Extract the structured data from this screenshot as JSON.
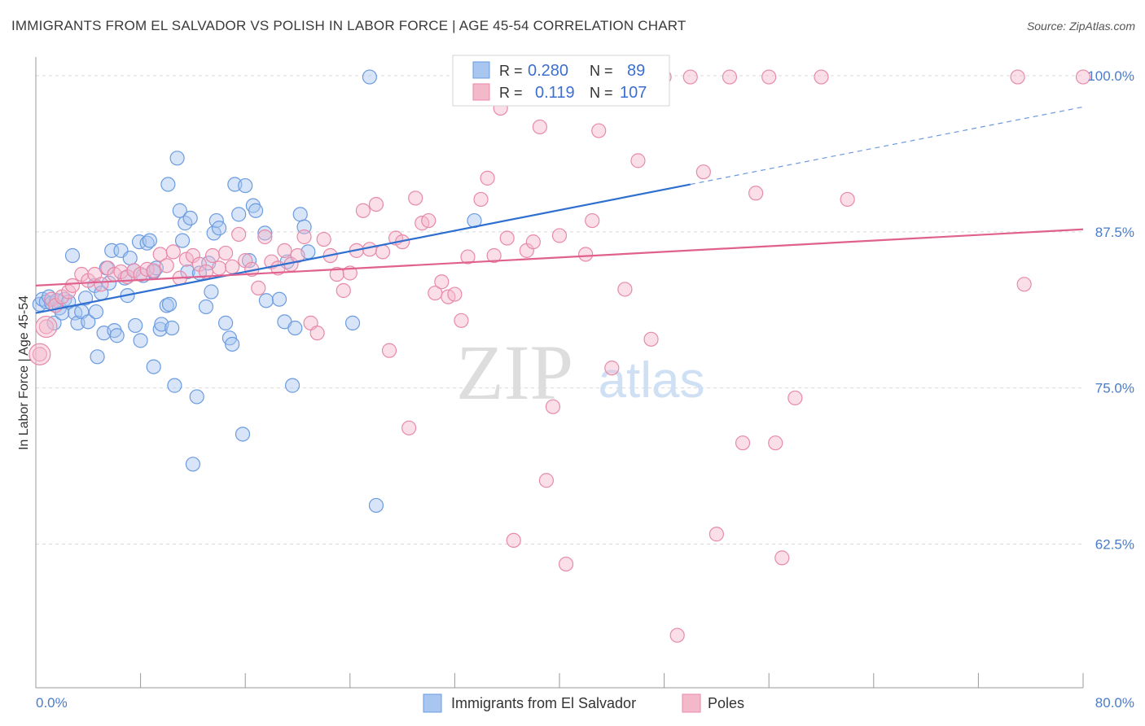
{
  "chart_data": {
    "type": "scatter",
    "title": "IMMIGRANTS FROM EL SALVADOR VS POLISH IN LABOR FORCE | AGE 45-54 CORRELATION CHART",
    "source": "Source: ZipAtlas.com",
    "xlabel": "",
    "ylabel": "In Labor Force | Age 45-54",
    "xlim": [
      0,
      80
    ],
    "ylim": [
      51,
      101.5
    ],
    "x_tick_labels": {
      "min": "0.0%",
      "max": "80.0%"
    },
    "y_ticks": [
      {
        "value": 100,
        "label": "100.0%"
      },
      {
        "value": 87.5,
        "label": "87.5%"
      },
      {
        "value": 75,
        "label": "75.0%"
      },
      {
        "value": 62.5,
        "label": "62.5%"
      }
    ],
    "grid": true,
    "watermark": {
      "zip": "ZIP",
      "atlas": "atlas"
    },
    "legend": {
      "r_label": "R =",
      "n_label": "N =",
      "entries": [
        {
          "r": "0.280",
          "n": "89"
        },
        {
          "r": "0.119",
          "n": "107"
        }
      ]
    },
    "series": [
      {
        "name": "Immigrants from El Salvador",
        "color": "#6b9be0",
        "fill": "#a9c6f0",
        "trend": {
          "x": [
            0,
            50
          ],
          "y": [
            81.0,
            91.3
          ],
          "dashed_to": {
            "x": 80,
            "y": 97.5
          },
          "color": "#2f6fd0"
        },
        "points": [
          [
            0.3,
            81.7
          ],
          [
            0.5,
            82.1
          ],
          [
            0.8,
            81.9
          ],
          [
            1.0,
            82.3
          ],
          [
            1.2,
            81.8
          ],
          [
            1.4,
            80.2
          ],
          [
            1.6,
            82.0
          ],
          [
            1.8,
            81.4
          ],
          [
            2.0,
            81.0
          ],
          [
            2.2,
            82.1
          ],
          [
            2.5,
            81.9
          ],
          [
            2.8,
            85.6
          ],
          [
            3.0,
            81.0
          ],
          [
            3.2,
            80.2
          ],
          [
            3.5,
            81.1
          ],
          [
            3.8,
            82.2
          ],
          [
            4.0,
            80.3
          ],
          [
            4.5,
            83.2
          ],
          [
            4.6,
            81.1
          ],
          [
            4.7,
            77.5
          ],
          [
            5.0,
            82.6
          ],
          [
            5.2,
            79.4
          ],
          [
            5.4,
            84.6
          ],
          [
            5.6,
            83.4
          ],
          [
            5.8,
            86.0
          ],
          [
            6.0,
            79.6
          ],
          [
            6.2,
            79.2
          ],
          [
            6.5,
            86.0
          ],
          [
            6.8,
            83.8
          ],
          [
            7.0,
            82.4
          ],
          [
            7.2,
            85.4
          ],
          [
            7.5,
            84.4
          ],
          [
            7.6,
            80.0
          ],
          [
            7.9,
            86.7
          ],
          [
            8.0,
            78.8
          ],
          [
            8.2,
            84.0
          ],
          [
            8.5,
            86.6
          ],
          [
            8.7,
            86.8
          ],
          [
            9.0,
            84.3
          ],
          [
            9.0,
            76.7
          ],
          [
            9.2,
            84.6
          ],
          [
            9.5,
            79.7
          ],
          [
            9.6,
            80.1
          ],
          [
            10.0,
            81.6
          ],
          [
            10.1,
            91.3
          ],
          [
            10.2,
            81.7
          ],
          [
            10.4,
            79.8
          ],
          [
            10.6,
            75.2
          ],
          [
            10.8,
            93.4
          ],
          [
            11.0,
            89.2
          ],
          [
            11.2,
            86.8
          ],
          [
            11.4,
            88.2
          ],
          [
            11.6,
            84.3
          ],
          [
            11.8,
            88.6
          ],
          [
            12.0,
            68.9
          ],
          [
            12.3,
            74.3
          ],
          [
            12.5,
            84.2
          ],
          [
            13.0,
            81.5
          ],
          [
            13.2,
            85.0
          ],
          [
            13.4,
            82.7
          ],
          [
            13.6,
            87.4
          ],
          [
            13.8,
            88.4
          ],
          [
            14.0,
            87.8
          ],
          [
            14.5,
            80.2
          ],
          [
            14.8,
            79.0
          ],
          [
            15.0,
            78.5
          ],
          [
            15.2,
            91.3
          ],
          [
            15.5,
            88.9
          ],
          [
            15.8,
            71.3
          ],
          [
            16.0,
            91.2
          ],
          [
            16.3,
            85.2
          ],
          [
            16.6,
            89.6
          ],
          [
            16.8,
            89.2
          ],
          [
            17.5,
            87.4
          ],
          [
            17.6,
            82.0
          ],
          [
            18.6,
            82.1
          ],
          [
            19.0,
            80.3
          ],
          [
            19.2,
            85.1
          ],
          [
            19.6,
            75.2
          ],
          [
            19.8,
            79.8
          ],
          [
            20.2,
            88.9
          ],
          [
            20.5,
            87.9
          ],
          [
            20.8,
            85.9
          ],
          [
            24.2,
            80.2
          ],
          [
            25.5,
            99.9
          ],
          [
            26.0,
            65.6
          ],
          [
            33.5,
            88.4
          ]
        ]
      },
      {
        "name": "Poles",
        "color": "#e78aa8",
        "fill": "#f4b8cb",
        "trend": {
          "x": [
            0,
            80
          ],
          "y": [
            83.2,
            87.7
          ],
          "color": "#e0608e"
        },
        "points": [
          [
            0.3,
            77.7
          ],
          [
            0.8,
            79.9
          ],
          [
            1.2,
            82.1
          ],
          [
            1.5,
            81.6
          ],
          [
            2.0,
            82.3
          ],
          [
            2.5,
            82.7
          ],
          [
            2.8,
            83.2
          ],
          [
            3.5,
            84.1
          ],
          [
            4.0,
            83.6
          ],
          [
            4.5,
            84.1
          ],
          [
            5.0,
            83.3
          ],
          [
            5.5,
            84.6
          ],
          [
            6.0,
            84.1
          ],
          [
            6.5,
            84.3
          ],
          [
            7.0,
            83.9
          ],
          [
            7.5,
            84.4
          ],
          [
            8.0,
            84.1
          ],
          [
            8.5,
            84.5
          ],
          [
            9.0,
            84.4
          ],
          [
            9.5,
            85.7
          ],
          [
            10.0,
            84.8
          ],
          [
            10.5,
            85.9
          ],
          [
            11.0,
            83.8
          ],
          [
            11.5,
            85.3
          ],
          [
            12.0,
            85.6
          ],
          [
            12.5,
            84.9
          ],
          [
            13.0,
            84.3
          ],
          [
            13.5,
            85.6
          ],
          [
            14.0,
            84.6
          ],
          [
            14.5,
            85.8
          ],
          [
            15.0,
            84.7
          ],
          [
            15.5,
            87.3
          ],
          [
            16.0,
            85.2
          ],
          [
            16.5,
            84.5
          ],
          [
            17.0,
            83.0
          ],
          [
            17.5,
            87.1
          ],
          [
            18.0,
            85.1
          ],
          [
            18.5,
            84.6
          ],
          [
            19.0,
            86.0
          ],
          [
            19.5,
            84.9
          ],
          [
            20.0,
            85.6
          ],
          [
            20.5,
            87.1
          ],
          [
            21.0,
            80.2
          ],
          [
            21.5,
            79.4
          ],
          [
            22.0,
            86.9
          ],
          [
            22.5,
            85.6
          ],
          [
            23.0,
            84.1
          ],
          [
            23.5,
            82.8
          ],
          [
            24.0,
            84.2
          ],
          [
            24.5,
            86.0
          ],
          [
            25.0,
            89.2
          ],
          [
            25.5,
            86.1
          ],
          [
            26.0,
            89.7
          ],
          [
            26.5,
            85.9
          ],
          [
            27.0,
            78.0
          ],
          [
            27.5,
            87.0
          ],
          [
            28.0,
            86.7
          ],
          [
            28.5,
            71.8
          ],
          [
            29.0,
            90.2
          ],
          [
            29.5,
            88.2
          ],
          [
            30.0,
            88.4
          ],
          [
            30.5,
            82.6
          ],
          [
            31.0,
            83.5
          ],
          [
            31.5,
            82.3
          ],
          [
            32.0,
            82.5
          ],
          [
            32.5,
            80.4
          ],
          [
            33.0,
            85.5
          ],
          [
            34.0,
            90.1
          ],
          [
            34.5,
            91.8
          ],
          [
            35.0,
            85.6
          ],
          [
            35.5,
            97.4
          ],
          [
            36.0,
            87.0
          ],
          [
            36.5,
            62.8
          ],
          [
            37.0,
            99.9
          ],
          [
            37.5,
            86.0
          ],
          [
            38.0,
            86.7
          ],
          [
            38.5,
            95.9
          ],
          [
            39.0,
            67.6
          ],
          [
            39.5,
            73.5
          ],
          [
            40.0,
            87.2
          ],
          [
            40.5,
            60.9
          ],
          [
            41.0,
            98.6
          ],
          [
            42.0,
            85.7
          ],
          [
            42.5,
            88.4
          ],
          [
            43.0,
            95.6
          ],
          [
            44.0,
            76.6
          ],
          [
            45.0,
            82.9
          ],
          [
            46.0,
            93.2
          ],
          [
            47.0,
            78.9
          ],
          [
            48.0,
            99.9
          ],
          [
            49.0,
            55.2
          ],
          [
            50.0,
            99.9
          ],
          [
            51.0,
            92.3
          ],
          [
            52.0,
            63.3
          ],
          [
            53.0,
            99.9
          ],
          [
            54.0,
            70.6
          ],
          [
            55.0,
            90.6
          ],
          [
            56.0,
            99.9
          ],
          [
            56.5,
            70.6
          ],
          [
            57.0,
            61.4
          ],
          [
            58.0,
            74.2
          ],
          [
            60.0,
            99.9
          ],
          [
            62.0,
            90.1
          ],
          [
            75.0,
            99.9
          ],
          [
            75.5,
            83.3
          ],
          [
            80.0,
            99.9
          ]
        ]
      }
    ]
  }
}
